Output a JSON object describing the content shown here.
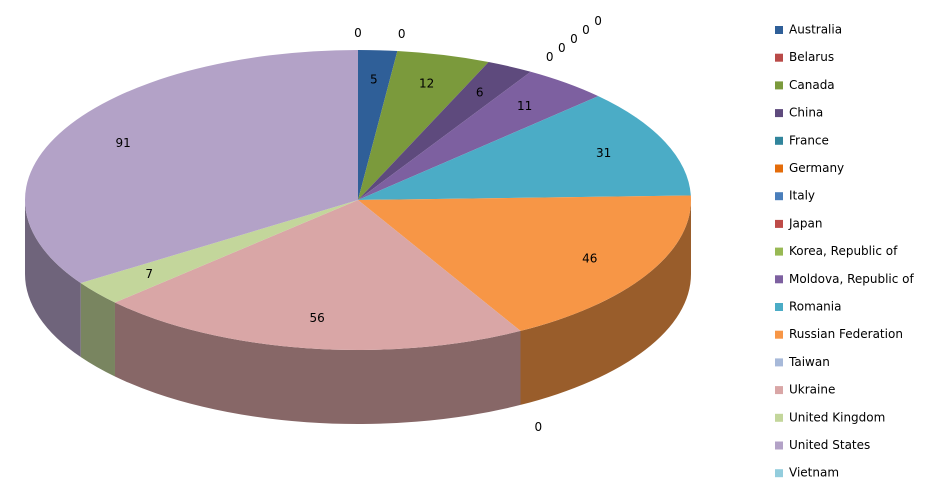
{
  "chart_data": {
    "type": "pie",
    "categories": [
      "Australia",
      "Belarus",
      "Canada",
      "China",
      "France",
      "Germany",
      "Italy",
      "Japan",
      "Korea, Republic of",
      "Moldova, Republic of",
      "Romania",
      "Russian Federation",
      "Taiwan",
      "Ukraine",
      "United Kingdom",
      "United States",
      "Vietnam"
    ],
    "values": [
      5,
      0,
      12,
      6,
      0,
      0,
      0,
      0,
      0,
      11,
      31,
      46,
      0,
      56,
      7,
      91,
      0
    ],
    "colors": [
      "#2f5f98",
      "#b94a48",
      "#7b9a3c",
      "#5e4a7d",
      "#31859c",
      "#e46c0a",
      "#4a7ebb",
      "#be4b48",
      "#98b954",
      "#7d60a0",
      "#4bacc6",
      "#f79646",
      "#a7b9d9",
      "#d9a6a6",
      "#c3d69b",
      "#b3a2c7",
      "#93cddd"
    ],
    "legend": "right"
  }
}
